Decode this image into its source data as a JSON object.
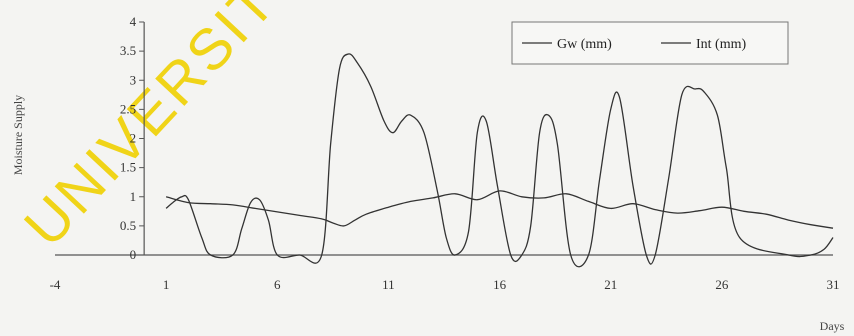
{
  "chart_data": {
    "type": "line",
    "xlabel": "Days",
    "ylabel": "Moisture Supply",
    "xlim": [
      -4,
      31
    ],
    "ylim": [
      0,
      4
    ],
    "xticks": [
      "-4",
      "1",
      "6",
      "11",
      "16",
      "21",
      "26",
      "31"
    ],
    "xtick_values": [
      -4,
      1,
      6,
      11,
      16,
      21,
      26,
      31
    ],
    "yticks": [
      "0",
      "0.5",
      "1",
      "1.5",
      "2",
      "2.5",
      "3",
      "3.5",
      "4"
    ],
    "ytick_values": [
      0,
      0.5,
      1,
      1.5,
      2,
      2.5,
      3,
      3.5,
      4
    ],
    "grid": false,
    "legend_position": "top-right",
    "series": [
      {
        "name": "Gw (mm)",
        "color": "#333333",
        "x": [
          1,
          1.3,
          1.7,
          2.0,
          2.6,
          3.0,
          4.0,
          4.4,
          4.8,
          5.2,
          5.6,
          6.0,
          7.0,
          8.0,
          8.4,
          8.8,
          9.2,
          9.6,
          10.2,
          10.8,
          11.2,
          11.6,
          12.0,
          12.6,
          13.2,
          13.6,
          14.0,
          14.6,
          15.0,
          15.4,
          15.9,
          16.5,
          17.0,
          17.4,
          17.8,
          18.2,
          18.6,
          19.2,
          20.0,
          20.5,
          21.0,
          21.4,
          22.0,
          22.6,
          23.0,
          23.6,
          24.2,
          24.8,
          25.2,
          25.8,
          26.2,
          26.8,
          29.0,
          30.0,
          30.6,
          31.0
        ],
        "values": [
          0.8,
          0.9,
          1.0,
          0.95,
          0.3,
          0.0,
          0.0,
          0.45,
          0.9,
          0.95,
          0.6,
          0.0,
          0.0,
          0.0,
          1.9,
          3.2,
          3.45,
          3.3,
          2.9,
          2.3,
          2.1,
          2.3,
          2.4,
          2.1,
          1.1,
          0.3,
          0.0,
          0.4,
          2.1,
          2.3,
          1.2,
          0.0,
          0.0,
          0.5,
          2.1,
          2.4,
          1.9,
          0.0,
          0.0,
          1.3,
          2.5,
          2.7,
          1.2,
          0.0,
          0.0,
          1.3,
          2.75,
          2.85,
          2.8,
          2.4,
          1.5,
          0.3,
          0.0,
          0.0,
          0.1,
          0.3
        ]
      },
      {
        "name": "Int (mm)",
        "color": "#333333",
        "x": [
          1,
          2,
          3,
          4,
          5,
          6,
          7,
          8,
          8.5,
          9,
          9.5,
          10,
          11,
          12,
          13,
          14,
          15,
          16,
          17,
          18,
          19,
          20,
          21,
          22,
          23,
          24,
          25,
          26,
          27,
          28,
          29,
          30,
          31
        ],
        "values": [
          1.0,
          0.9,
          0.88,
          0.86,
          0.8,
          0.74,
          0.68,
          0.62,
          0.55,
          0.5,
          0.6,
          0.7,
          0.82,
          0.92,
          0.98,
          1.05,
          0.95,
          1.1,
          1.0,
          0.98,
          1.05,
          0.92,
          0.8,
          0.88,
          0.78,
          0.72,
          0.76,
          0.82,
          0.75,
          0.7,
          0.6,
          0.52,
          0.46
        ]
      }
    ]
  },
  "watermark": "UNIVERSITY"
}
